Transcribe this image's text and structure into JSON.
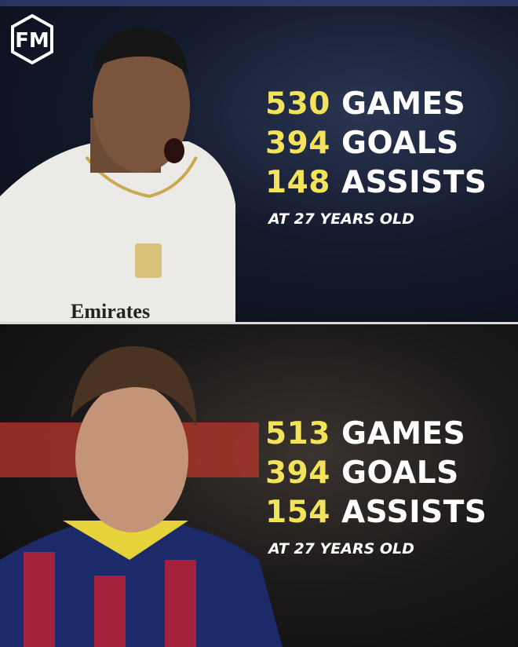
{
  "logo": {
    "text": "FM",
    "icon": "brand-logo"
  },
  "colors": {
    "highlight": "#f2e35a",
    "text": "#ffffff"
  },
  "panels": [
    {
      "player_image": "player-real-madrid-kit",
      "stats": [
        {
          "value": "530",
          "label": "GAMES"
        },
        {
          "value": "394",
          "label": "GOALS"
        },
        {
          "value": "148",
          "label": "ASSISTS"
        }
      ],
      "age_note": "AT 27 YEARS OLD",
      "jersey_text": "Emirates"
    },
    {
      "player_image": "player-barcelona-kit",
      "stats": [
        {
          "value": "513",
          "label": "GAMES"
        },
        {
          "value": "394",
          "label": "GOALS"
        },
        {
          "value": "154",
          "label": "ASSISTS"
        }
      ],
      "age_note": "AT 27 YEARS OLD"
    }
  ]
}
